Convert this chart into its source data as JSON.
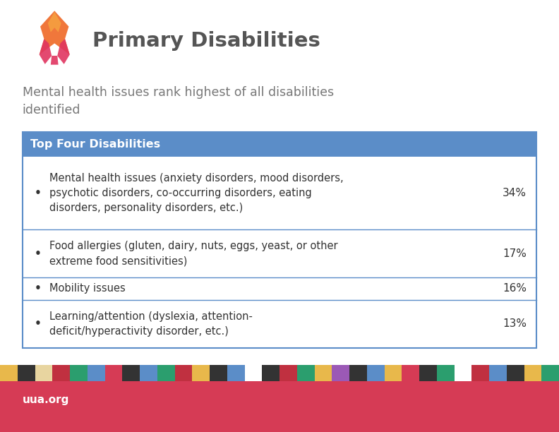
{
  "title": "Primary Disabilities",
  "subtitle": "Mental health issues rank highest of all disabilities\nidentified",
  "table_header": "Top Four Disabilities",
  "table_header_bg": "#5B8DC8",
  "table_header_color": "#FFFFFF",
  "table_border_color": "#5B8DC8",
  "rows": [
    {
      "text": "Mental health issues (anxiety disorders, mood disorders,\npsychotic disorders, co-occurring disorders, eating\ndisorders, personality disorders, etc.)",
      "pct": "34%"
    },
    {
      "text": "Food allergies (gluten, dairy, nuts, eggs, yeast, or other\nextreme food sensitivities)",
      "pct": "17%"
    },
    {
      "text": "Mobility issues",
      "pct": "16%"
    },
    {
      "text": "Learning/attention (dyslexia, attention-\ndeficit/hyperactivity disorder, etc.)",
      "pct": "13%"
    }
  ],
  "footer_bg": "#D63B55",
  "footer_text": "uua.org",
  "footer_text_color": "#FFFFFF",
  "bg_color": "#FFFFFF",
  "title_color": "#555555",
  "subtitle_color": "#777777",
  "row_text_color": "#333333",
  "pct_color": "#333333",
  "colorbar_colors": [
    "#E8B84B",
    "#333333",
    "#E8D5A0",
    "#C03040",
    "#2B9E6E",
    "#5B8DC8",
    "#D63B55",
    "#333333",
    "#5B8DC8",
    "#2B9E6E",
    "#C03040",
    "#E8B84B",
    "#333333",
    "#5B8DC8",
    "#FFFFFF",
    "#333333",
    "#C03040",
    "#2B9E6E",
    "#E8B84B",
    "#9B59B6",
    "#333333",
    "#5B8DC8",
    "#E8B84B",
    "#D63B55",
    "#333333",
    "#2B9E6E",
    "#FFFFFF",
    "#C03040",
    "#5B8DC8",
    "#333333",
    "#E8B84B",
    "#2B9E6E"
  ]
}
